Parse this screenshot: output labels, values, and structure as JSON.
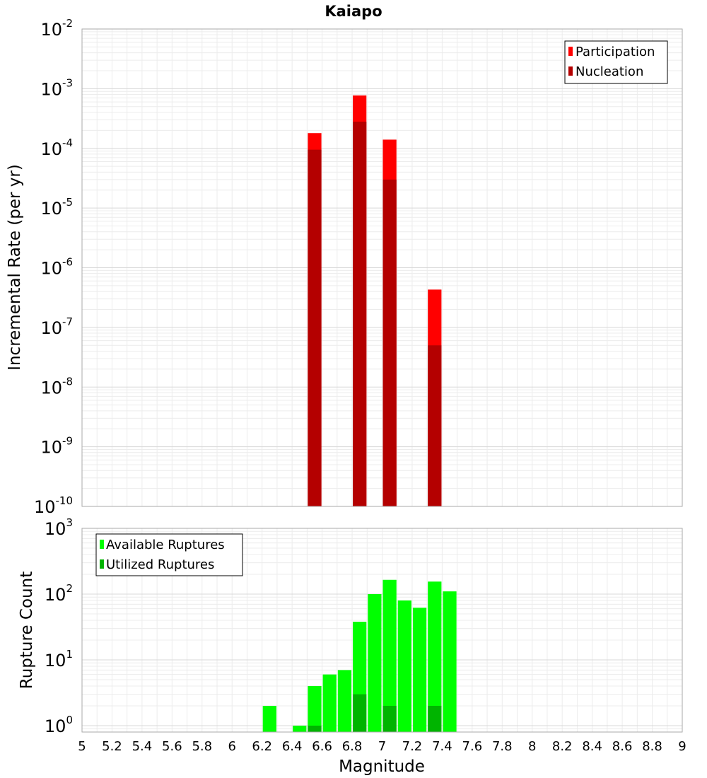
{
  "chart_data": [
    {
      "type": "bar",
      "title": "Kaiapo",
      "ylabel": "Incremental Rate (per yr)",
      "yscale": "log",
      "ylim": [
        1e-10,
        0.01
      ],
      "y_exponents": [
        "-10",
        "-9",
        "-8",
        "-7",
        "-6",
        "-5",
        "-4",
        "-3",
        "-2"
      ],
      "y_base_label": "10",
      "grid": true,
      "legend_position": "top-right",
      "series": [
        {
          "name": "Participation",
          "color": "#ff0000",
          "x": [
            6.55,
            6.85,
            7.05,
            7.35
          ],
          "values": [
            0.00018,
            0.00077,
            0.00014,
            4.3e-07
          ]
        },
        {
          "name": "Nucleation",
          "color": "#b40000",
          "x": [
            6.55,
            6.85,
            7.05,
            7.35
          ],
          "values": [
            9.5e-05,
            0.00028,
            3e-05,
            5e-08
          ]
        }
      ]
    },
    {
      "type": "bar",
      "xlabel": "Magnitude",
      "ylabel": "Rupture Count",
      "yscale": "log",
      "ylim": [
        0.8,
        1000
      ],
      "y_exponents": [
        "0",
        "1",
        "2",
        "3"
      ],
      "y_base_label": "10",
      "xlim": [
        5,
        9
      ],
      "x_ticks": [
        "5",
        "5.2",
        "5.4",
        "5.6",
        "5.8",
        "6",
        "6.2",
        "6.4",
        "6.6",
        "6.8",
        "7",
        "7.2",
        "7.4",
        "7.6",
        "7.8",
        "8",
        "8.2",
        "8.4",
        "8.6",
        "8.8",
        "9"
      ],
      "grid": true,
      "legend_position": "top-left",
      "series": [
        {
          "name": "Available Ruptures",
          "color": "#00ff00",
          "x": [
            6.25,
            6.45,
            6.55,
            6.65,
            6.75,
            6.85,
            6.95,
            7.05,
            7.15,
            7.25,
            7.35,
            7.45
          ],
          "values": [
            2,
            1,
            4,
            6,
            7,
            38,
            100,
            165,
            80,
            62,
            155,
            110
          ]
        },
        {
          "name": "Utilized Ruptures",
          "color": "#00b400",
          "x": [
            6.55,
            6.85,
            7.05,
            7.35
          ],
          "values": [
            1,
            3,
            2,
            2
          ]
        }
      ]
    }
  ]
}
